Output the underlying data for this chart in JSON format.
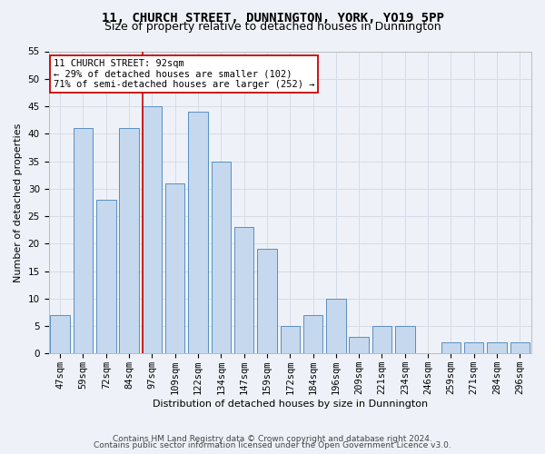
{
  "title1": "11, CHURCH STREET, DUNNINGTON, YORK, YO19 5PP",
  "title2": "Size of property relative to detached houses in Dunnington",
  "xlabel": "Distribution of detached houses by size in Dunnington",
  "ylabel": "Number of detached properties",
  "categories": [
    "47sqm",
    "59sqm",
    "72sqm",
    "84sqm",
    "97sqm",
    "109sqm",
    "122sqm",
    "134sqm",
    "147sqm",
    "159sqm",
    "172sqm",
    "184sqm",
    "196sqm",
    "209sqm",
    "221sqm",
    "234sqm",
    "246sqm",
    "259sqm",
    "271sqm",
    "284sqm",
    "296sqm"
  ],
  "values": [
    7,
    41,
    28,
    41,
    45,
    31,
    44,
    35,
    23,
    19,
    5,
    7,
    10,
    3,
    5,
    5,
    0,
    2,
    2,
    2,
    2
  ],
  "bar_color": "#c5d8ed",
  "bar_edge_color": "#5a8fc0",
  "grid_color": "#d4dce8",
  "background_color": "#eef2f8",
  "vline_color": "#cc0000",
  "vline_index": 3.575,
  "annotation_text": "11 CHURCH STREET: 92sqm\n← 29% of detached houses are smaller (102)\n71% of semi-detached houses are larger (252) →",
  "annotation_box_color": "#ffffff",
  "annotation_box_edge": "#cc0000",
  "ylim": [
    0,
    55
  ],
  "yticks": [
    0,
    5,
    10,
    15,
    20,
    25,
    30,
    35,
    40,
    45,
    50,
    55
  ],
  "footer1": "Contains HM Land Registry data © Crown copyright and database right 2024.",
  "footer2": "Contains public sector information licensed under the Open Government Licence v3.0.",
  "title_fontsize": 10,
  "subtitle_fontsize": 9,
  "axis_label_fontsize": 8,
  "tick_fontsize": 7.5,
  "annotation_fontsize": 7.5,
  "footer_fontsize": 6.5,
  "ylabel_fontsize": 8
}
